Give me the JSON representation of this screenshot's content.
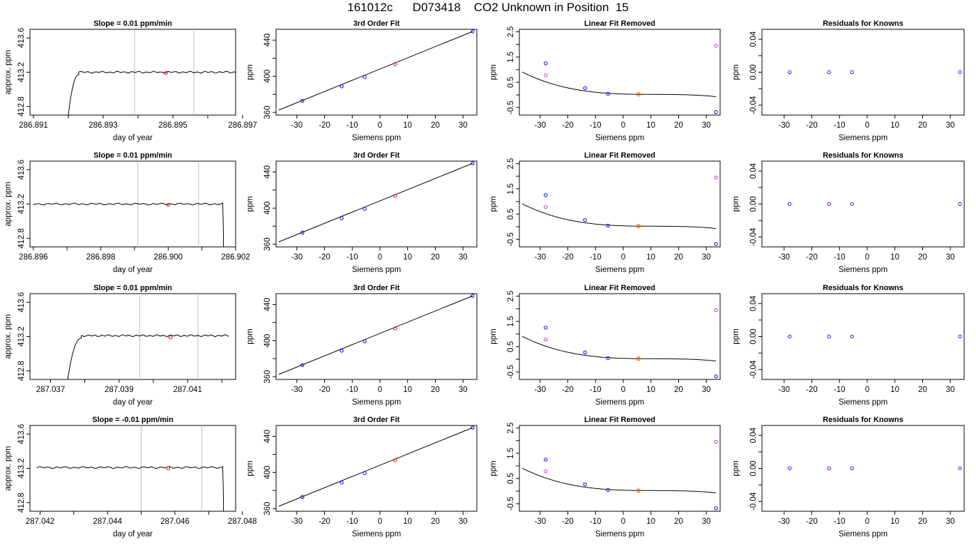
{
  "title": "161012c      D073418    CO2 Unknown in Position  15",
  "colors": {
    "trace": "#000000",
    "window_lines": "#bbbbbb",
    "known_points": "#0000ff",
    "unknown_point": "#ff0000",
    "excluded_point": "#cc33cc",
    "orange_point": "#ff6600",
    "residual_points": "#5500ff"
  },
  "panel_titles": {
    "fit": "3rd Order Fit",
    "removed": "Linear Fit Removed",
    "residuals": "Residuals for Knowns"
  },
  "axis_labels": {
    "time_x": "day of year",
    "time_y": "approx. ppm",
    "siemens_x": "Siemens ppm",
    "ppm_y": "ppm"
  },
  "chart_data": [
    {
      "row": 0,
      "type": "line",
      "title": "Slope =  0.01  ppm/min",
      "xlabel": "day of year",
      "ylabel": "approx. ppm",
      "xlim": [
        286.8909,
        286.8968
      ],
      "ylim": [
        412.7,
        413.7
      ],
      "xticks": [
        "286.891",
        "286.893",
        "286.895",
        "286.897"
      ],
      "xtick_values": [
        286.891,
        286.893,
        286.895,
        286.897
      ],
      "minor_xticks": [
        286.892,
        286.894,
        286.896
      ],
      "yticks": [
        "412.8",
        "413.2",
        "413.6"
      ],
      "ytick_values": [
        412.8,
        413.2,
        413.6
      ],
      "window_lines": [
        286.8939,
        286.8956
      ],
      "unknown_point": {
        "x": 286.8948,
        "y": 413.19
      },
      "trace": {
        "start_x": 286.892,
        "start_y": 412.7,
        "rise_end_x": 286.8923,
        "end_x": 286.8968,
        "level": 413.2,
        "drop_end": false
      }
    },
    {
      "row": 0,
      "type": "scatter",
      "title": "3rd Order Fit",
      "xlabel": "Siemens ppm",
      "ylabel": "ppm",
      "xlim": [
        -37.5,
        35
      ],
      "ylim": [
        357,
        452
      ],
      "xticks": [
        "-30",
        "-20",
        "-10",
        "0",
        "10",
        "20",
        "30"
      ],
      "yticks": [
        "360",
        "400",
        "440"
      ],
      "minor_yticks": [
        380,
        420
      ],
      "fit_line": [
        [
          -36.5,
          362.6
        ],
        [
          33.5,
          449.6
        ]
      ],
      "known_points": [
        [
          -28,
          372.8
        ],
        [
          -13.8,
          388.8
        ],
        [
          -5.5,
          399.2
        ],
        [
          33.5,
          449.6
        ]
      ],
      "unknown_point": [
        5.5,
        413.5
      ]
    },
    {
      "row": 0,
      "type": "scatter",
      "title": "Linear Fit Removed",
      "xlabel": "Siemens ppm",
      "ylabel": "ppm",
      "xlim": [
        -37.5,
        35
      ],
      "ylim": [
        -0.8,
        2.6
      ],
      "xticks": [
        "-30",
        "-20",
        "-10",
        "0",
        "10",
        "20",
        "30"
      ],
      "yticks": [
        "-0.5",
        "0.5",
        "1.5",
        "2.5"
      ],
      "minor_yticks": [
        0,
        1,
        2
      ],
      "curve_coeffs": [
        0.0357,
        -0.0035,
        0.000273,
        -7.85e-06
      ],
      "curve_xrange": [
        -36.5,
        33.5
      ],
      "known_points": [
        [
          -28,
          1.25
        ],
        [
          -13.8,
          0.27
        ],
        [
          -5.5,
          0.04
        ],
        [
          33.5,
          -0.68
        ]
      ],
      "excluded_points": [
        [
          -28,
          0.78
        ],
        [
          33.5,
          1.95
        ]
      ],
      "orange_point": [
        5.5,
        0.02
      ]
    },
    {
      "row": 0,
      "type": "scatter",
      "title": "Residuals for Knowns",
      "xlabel": "Siemens ppm",
      "ylabel": "ppm",
      "xlim": [
        -38,
        35
      ],
      "ylim": [
        -0.052,
        0.052
      ],
      "xticks": [
        "-30",
        "-20",
        "-10",
        "0",
        "10",
        "20",
        "30"
      ],
      "yticks": [
        "-0.04",
        "0.00",
        "0.04"
      ],
      "minor_yticks": [
        -0.02,
        0.02
      ],
      "residual_points": [
        [
          -28,
          0
        ],
        [
          -13.8,
          0
        ],
        [
          -5.5,
          0
        ],
        [
          33.5,
          0
        ]
      ]
    },
    {
      "row": 1,
      "type": "line",
      "title": "Slope =  0.01  ppm/min",
      "xlabel": "day of year",
      "ylabel": "approx. ppm",
      "xlim": [
        286.8959,
        286.902
      ],
      "ylim": [
        412.7,
        413.7
      ],
      "xticks": [
        "286.896",
        "286.898",
        "286.900",
        "286.902"
      ],
      "xtick_values": [
        286.896,
        286.898,
        286.9,
        286.902
      ],
      "minor_xticks": [
        286.897,
        286.899,
        286.901
      ],
      "yticks": [
        "412.8",
        "413.2",
        "413.6"
      ],
      "ytick_values": [
        412.8,
        413.2,
        413.6
      ],
      "window_lines": [
        286.8991,
        286.9009
      ],
      "unknown_point": {
        "x": 286.9,
        "y": 413.19
      },
      "trace": {
        "start_x": 286.896,
        "start_y": 413.22,
        "rise_end_x": 286.896,
        "end_x": 286.9016,
        "level": 413.2,
        "drop_end": true
      }
    },
    {
      "row": 1,
      "type": "scatter",
      "title": "3rd Order Fit",
      "xlabel": "Siemens ppm",
      "ylabel": "ppm",
      "xlim": [
        -37.5,
        35
      ],
      "ylim": [
        357,
        452
      ],
      "xticks": [
        "-30",
        "-20",
        "-10",
        "0",
        "10",
        "20",
        "30"
      ],
      "yticks": [
        "360",
        "400",
        "440"
      ],
      "minor_yticks": [
        380,
        420
      ],
      "fit_line": [
        [
          -36.5,
          362.6
        ],
        [
          33.5,
          449.6
        ]
      ],
      "known_points": [
        [
          -28,
          372.8
        ],
        [
          -13.8,
          388.8
        ],
        [
          -5.5,
          399.2
        ],
        [
          33.5,
          449.6
        ]
      ],
      "unknown_point": [
        5.5,
        413.5
      ]
    },
    {
      "row": 1,
      "type": "scatter",
      "title": "Linear Fit Removed",
      "xlabel": "Siemens ppm",
      "ylabel": "ppm",
      "xlim": [
        -37.5,
        35
      ],
      "ylim": [
        -0.8,
        2.6
      ],
      "xticks": [
        "-30",
        "-20",
        "-10",
        "0",
        "10",
        "20",
        "30"
      ],
      "yticks": [
        "-0.5",
        "0.5",
        "1.5",
        "2.5"
      ],
      "minor_yticks": [
        0,
        1,
        2
      ],
      "curve_coeffs": [
        0.0357,
        -0.0035,
        0.000273,
        -7.85e-06
      ],
      "curve_xrange": [
        -36.5,
        33.5
      ],
      "known_points": [
        [
          -28,
          1.25
        ],
        [
          -13.8,
          0.27
        ],
        [
          -5.5,
          0.04
        ],
        [
          33.5,
          -0.68
        ]
      ],
      "excluded_points": [
        [
          -28,
          0.78
        ],
        [
          33.5,
          1.95
        ]
      ],
      "orange_point": [
        5.5,
        0.02
      ]
    },
    {
      "row": 1,
      "type": "scatter",
      "title": "Residuals for Knowns",
      "xlabel": "Siemens ppm",
      "ylabel": "ppm",
      "xlim": [
        -38,
        35
      ],
      "ylim": [
        -0.052,
        0.052
      ],
      "xticks": [
        "-30",
        "-20",
        "-10",
        "0",
        "10",
        "20",
        "30"
      ],
      "yticks": [
        "-0.04",
        "0.00",
        "0.04"
      ],
      "minor_yticks": [
        -0.02,
        0.02
      ],
      "residual_points": [
        [
          -28,
          0
        ],
        [
          -13.8,
          0
        ],
        [
          -5.5,
          0
        ],
        [
          33.5,
          0
        ]
      ]
    },
    {
      "row": 2,
      "type": "line",
      "title": "Slope =  0.01  ppm/min",
      "xlabel": "day of year",
      "ylabel": "approx. ppm",
      "xlim": [
        287.0364,
        287.0424
      ],
      "ylim": [
        412.7,
        413.7
      ],
      "xticks": [
        "287.037",
        "287.039",
        "287.041"
      ],
      "xtick_values": [
        287.037,
        287.039,
        287.041
      ],
      "minor_xticks": [
        287.038,
        287.04,
        287.042
      ],
      "yticks": [
        "412.8",
        "413.2",
        "413.6"
      ],
      "ytick_values": [
        412.8,
        413.2,
        413.6
      ],
      "window_lines": [
        287.0396,
        287.0413
      ],
      "unknown_point": {
        "x": 287.0405,
        "y": 413.19
      },
      "trace": {
        "start_x": 287.0375,
        "start_y": 412.7,
        "rise_end_x": 287.0379,
        "end_x": 287.0422,
        "level": 413.21,
        "drop_end": false
      }
    },
    {
      "row": 2,
      "type": "scatter",
      "title": "3rd Order Fit",
      "xlabel": "Siemens ppm",
      "ylabel": "ppm",
      "xlim": [
        -37.5,
        35
      ],
      "ylim": [
        357,
        452
      ],
      "xticks": [
        "-30",
        "-20",
        "-10",
        "0",
        "10",
        "20",
        "30"
      ],
      "yticks": [
        "360",
        "400",
        "440"
      ],
      "minor_yticks": [
        380,
        420
      ],
      "fit_line": [
        [
          -36.5,
          362.6
        ],
        [
          33.5,
          449.6
        ]
      ],
      "known_points": [
        [
          -28,
          372.8
        ],
        [
          -13.8,
          388.8
        ],
        [
          -5.5,
          399.2
        ],
        [
          33.5,
          449.6
        ]
      ],
      "unknown_point": [
        5.5,
        413.5
      ]
    },
    {
      "row": 2,
      "type": "scatter",
      "title": "Linear Fit Removed",
      "xlabel": "Siemens ppm",
      "ylabel": "ppm",
      "xlim": [
        -37.5,
        35
      ],
      "ylim": [
        -0.8,
        2.6
      ],
      "xticks": [
        "-30",
        "-20",
        "-10",
        "0",
        "10",
        "20",
        "30"
      ],
      "yticks": [
        "-0.5",
        "0.5",
        "1.5",
        "2.5"
      ],
      "minor_yticks": [
        0,
        1,
        2
      ],
      "curve_coeffs": [
        0.0357,
        -0.0035,
        0.000273,
        -7.85e-06
      ],
      "curve_xrange": [
        -36.5,
        33.5
      ],
      "known_points": [
        [
          -28,
          1.25
        ],
        [
          -13.8,
          0.27
        ],
        [
          -5.5,
          0.04
        ],
        [
          33.5,
          -0.68
        ]
      ],
      "excluded_points": [
        [
          -28,
          0.78
        ],
        [
          33.5,
          1.95
        ]
      ],
      "orange_point": [
        5.5,
        0.02
      ]
    },
    {
      "row": 2,
      "type": "scatter",
      "title": "Residuals for Knowns",
      "xlabel": "Siemens ppm",
      "ylabel": "ppm",
      "xlim": [
        -38,
        35
      ],
      "ylim": [
        -0.052,
        0.052
      ],
      "xticks": [
        "-30",
        "-20",
        "-10",
        "0",
        "10",
        "20",
        "30"
      ],
      "yticks": [
        "-0.04",
        "0.00",
        "0.04"
      ],
      "minor_yticks": [
        -0.02,
        0.02
      ],
      "residual_points": [
        [
          -28,
          0
        ],
        [
          -13.8,
          0
        ],
        [
          -5.5,
          0
        ],
        [
          33.5,
          0
        ]
      ]
    },
    {
      "row": 3,
      "type": "line",
      "title": "Slope =  -0.01  ppm/min",
      "xlabel": "day of year",
      "ylabel": "approx. ppm",
      "xlim": [
        287.0417,
        287.0478
      ],
      "ylim": [
        412.7,
        413.7
      ],
      "xticks": [
        "287.042",
        "287.044",
        "287.046",
        "287.048"
      ],
      "xtick_values": [
        287.042,
        287.044,
        287.046,
        287.048
      ],
      "minor_xticks": [
        287.043,
        287.045,
        287.047
      ],
      "yticks": [
        "412.8",
        "413.2",
        "413.6"
      ],
      "ytick_values": [
        412.8,
        413.2,
        413.6
      ],
      "window_lines": [
        287.045,
        287.0468
      ],
      "unknown_point": {
        "x": 287.0458,
        "y": 413.2
      },
      "trace": {
        "start_x": 287.0419,
        "start_y": 413.22,
        "rise_end_x": 287.0419,
        "end_x": 287.0474,
        "level": 413.21,
        "drop_end": true
      }
    },
    {
      "row": 3,
      "type": "scatter",
      "title": "3rd Order Fit",
      "xlabel": "Siemens ppm",
      "ylabel": "ppm",
      "xlim": [
        -37.5,
        35
      ],
      "ylim": [
        357,
        452
      ],
      "xticks": [
        "-30",
        "-20",
        "-10",
        "0",
        "10",
        "20",
        "30"
      ],
      "yticks": [
        "360",
        "400",
        "440"
      ],
      "minor_yticks": [
        380,
        420
      ],
      "fit_line": [
        [
          -36.5,
          362.6
        ],
        [
          33.5,
          449.6
        ]
      ],
      "known_points": [
        [
          -28,
          372.8
        ],
        [
          -13.8,
          388.8
        ],
        [
          -5.5,
          399.2
        ],
        [
          33.5,
          449.6
        ]
      ],
      "unknown_point": [
        5.5,
        413.5
      ]
    },
    {
      "row": 3,
      "type": "scatter",
      "title": "Linear Fit Removed",
      "xlabel": "Siemens ppm",
      "ylabel": "ppm",
      "xlim": [
        -37.5,
        35
      ],
      "ylim": [
        -0.8,
        2.6
      ],
      "xticks": [
        "-30",
        "-20",
        "-10",
        "0",
        "10",
        "20",
        "30"
      ],
      "yticks": [
        "-0.5",
        "0.5",
        "1.5",
        "2.5"
      ],
      "minor_yticks": [
        0,
        1,
        2
      ],
      "curve_coeffs": [
        0.0357,
        -0.0035,
        0.000273,
        -7.85e-06
      ],
      "curve_xrange": [
        -36.5,
        33.5
      ],
      "known_points": [
        [
          -28,
          1.25
        ],
        [
          -13.8,
          0.27
        ],
        [
          -5.5,
          0.04
        ],
        [
          33.5,
          -0.68
        ]
      ],
      "excluded_points": [
        [
          -28,
          0.78
        ],
        [
          33.5,
          1.95
        ]
      ],
      "orange_point": [
        5.5,
        0.02
      ]
    },
    {
      "row": 3,
      "type": "scatter",
      "title": "Residuals for Knowns",
      "xlabel": "Siemens ppm",
      "ylabel": "ppm",
      "xlim": [
        -38,
        35
      ],
      "ylim": [
        -0.052,
        0.052
      ],
      "xticks": [
        "-30",
        "-20",
        "-10",
        "0",
        "10",
        "20",
        "30"
      ],
      "yticks": [
        "-0.04",
        "0.00",
        "0.04"
      ],
      "minor_yticks": [
        -0.02,
        0.02
      ],
      "residual_points": [
        [
          -28,
          0
        ],
        [
          -13.8,
          0
        ],
        [
          -5.5,
          0
        ],
        [
          33.5,
          0
        ]
      ]
    }
  ]
}
